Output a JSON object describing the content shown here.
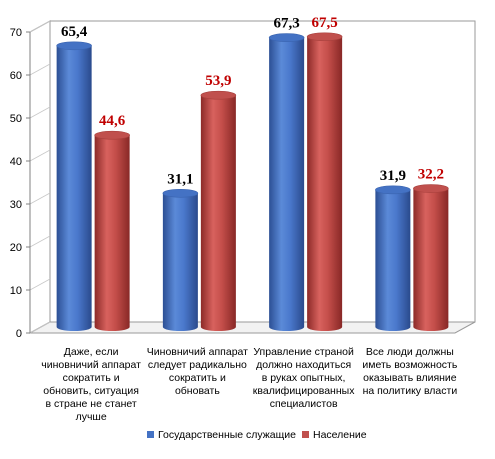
{
  "chart_data": {
    "type": "bar",
    "categories": [
      "Даже, если чиновничий аппарат сократить и обновить, ситуация в стране не станет лучше",
      "Чиновничий аппарат следует радикально сократить и обновать",
      "Управление страной должно находиться в руках опытных, квалифицированных специалистов",
      "Все люди должны иметь возможность оказывать влияние на политику власти"
    ],
    "category_lines": [
      [
        "Даже, если",
        "чиновничий аппарат",
        "сократить и",
        "обновить, ситуация",
        "в стране не станет",
        "лучше"
      ],
      [
        "Чиновничий аппарат",
        "следует радикально",
        "сократить и",
        "обновать"
      ],
      [
        "Управление страной",
        "должно находиться",
        "в руках опытных,",
        "квалифицированных",
        "специалистов"
      ],
      [
        "Все люди должны",
        "иметь возможность",
        "оказывать влияние",
        "на политику власти"
      ]
    ],
    "series": [
      {
        "name": "Государственные служащие",
        "values": [
          65.4,
          31.1,
          67.3,
          31.9
        ],
        "value_labels": [
          "65,4",
          "31,1",
          "67,3",
          "31,9"
        ],
        "color": "#4472c4",
        "label_color": "#000000"
      },
      {
        "name": "Население",
        "values": [
          44.6,
          53.9,
          67.5,
          32.2
        ],
        "value_labels": [
          "44,6",
          "53,9",
          "67,5",
          "32,2"
        ],
        "color": "#c0504d",
        "label_color": "#c00000"
      }
    ],
    "ylim": [
      0,
      70
    ],
    "yticks": [
      "0",
      "10",
      "20",
      "30",
      "40",
      "50",
      "60",
      "70"
    ],
    "grid": false,
    "legend_position": "bottom",
    "style": "3d-cylinder"
  }
}
